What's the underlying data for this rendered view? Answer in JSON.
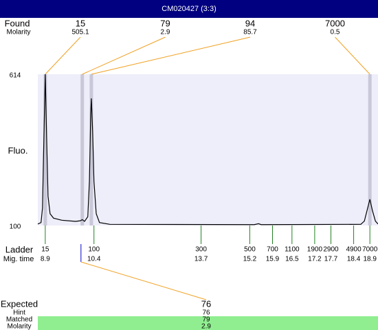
{
  "chart_data": {
    "type": "line",
    "title": "CM020427 (3:3)",
    "ylabel": "Fluo.",
    "ylim": [
      100,
      614
    ],
    "yticks": [
      614,
      100
    ],
    "xlim": [
      8.67,
      19.15
    ],
    "x": [
      8.67,
      8.77,
      8.815,
      8.858,
      8.9,
      8.942,
      8.985,
      9.048,
      9.154,
      9.408,
      9.832,
      9.98,
      10.04,
      10.11,
      10.21,
      10.26,
      10.3,
      10.32,
      10.36,
      10.4,
      10.47,
      10.57,
      10.89,
      15.34,
      15.47,
      15.55,
      18.62,
      18.73,
      18.81,
      18.9,
      18.98,
      19.07,
      19.15
    ],
    "series": [
      {
        "name": "trace",
        "color": "#000000",
        "values": [
          105,
          110,
          160,
          400,
          614,
          400,
          200,
          140,
          125,
          118,
          114,
          116,
          120,
          114,
          130,
          250,
          480,
          532,
          420,
          250,
          140,
          110,
          104,
          103,
          106,
          103,
          104,
          115,
          150,
          189,
          150,
          115,
          105
        ]
      }
    ],
    "found": {
      "label": "Found",
      "molarity_label": "Molarity",
      "color": "#f0a020",
      "band_color": "#c8c8d8",
      "sizes": [
        15,
        79,
        94,
        7000
      ],
      "molarity": [
        505.1,
        2.9,
        85.7,
        0.5
      ],
      "times": [
        8.9,
        10.04,
        10.32,
        18.9
      ]
    },
    "ladder": {
      "label": "Ladder",
      "time_label": "Mig. time",
      "color": "#208020",
      "sizes": [
        15,
        100,
        300,
        500,
        700,
        1100,
        1900,
        2900,
        4900,
        7000
      ],
      "times": [
        8.9,
        10.4,
        13.7,
        15.2,
        15.9,
        16.5,
        17.2,
        17.7,
        18.4,
        18.9
      ]
    },
    "expected": {
      "label": "Expected",
      "value": 76,
      "time": 10.0,
      "hint_label": "Hint",
      "hint": 76,
      "matched_label": "Matched",
      "matched": 79,
      "molarity_label": "Molarity",
      "molarity": 2.9,
      "color": "#90ee90"
    }
  }
}
